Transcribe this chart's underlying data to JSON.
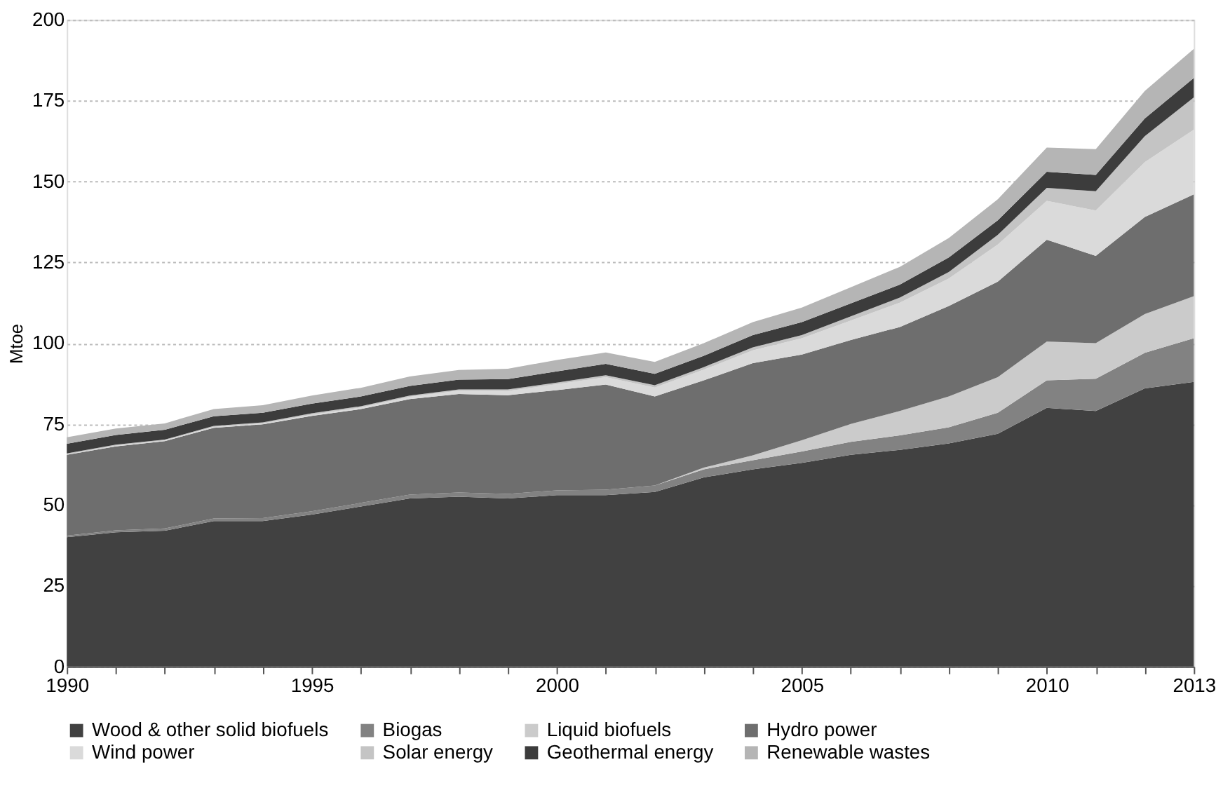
{
  "chart_data": {
    "type": "area",
    "stacked": true,
    "ylabel": "Mtoe",
    "x": [
      1990,
      1991,
      1992,
      1993,
      1994,
      1995,
      1996,
      1997,
      1998,
      1999,
      2000,
      2001,
      2002,
      2003,
      2004,
      2005,
      2006,
      2007,
      2008,
      2009,
      2010,
      2011,
      2012,
      2013
    ],
    "xlim": [
      1990,
      2013
    ],
    "xticks": [
      1990,
      {
        "value": 1991,
        "label": null
      },
      {
        "value": 1992,
        "label": null
      },
      {
        "value": 1993,
        "label": null
      },
      {
        "value": 1994,
        "label": null
      },
      1995,
      {
        "value": 1996,
        "label": null
      },
      {
        "value": 1997,
        "label": null
      },
      {
        "value": 1998,
        "label": null
      },
      {
        "value": 1999,
        "label": null
      },
      2000,
      {
        "value": 2001,
        "label": null
      },
      {
        "value": 2002,
        "label": null
      },
      {
        "value": 2003,
        "label": null
      },
      {
        "value": 2004,
        "label": null
      },
      2005,
      {
        "value": 2006,
        "label": null
      },
      {
        "value": 2007,
        "label": null
      },
      {
        "value": 2008,
        "label": null
      },
      {
        "value": 2009,
        "label": null
      },
      2010,
      {
        "value": 2011,
        "label": null
      },
      {
        "value": 2012,
        "label": null
      },
      2013
    ],
    "ylim": [
      0,
      200
    ],
    "yticks": [
      0,
      25,
      50,
      75,
      100,
      125,
      150,
      175,
      200
    ],
    "grid": "y",
    "legend": "bottom",
    "series": [
      {
        "name": "Wood & other solid biofuels",
        "color": "#414141",
        "values": [
          40,
          41.5,
          42,
          45,
          45,
          47,
          49.5,
          52,
          52.5,
          52,
          53,
          53,
          54,
          58.5,
          61,
          63,
          65.5,
          67,
          69,
          72,
          80,
          79,
          86,
          88
        ]
      },
      {
        "name": "Biogas",
        "color": "#828282",
        "values": [
          0.5,
          0.6,
          0.7,
          0.8,
          0.9,
          1,
          1.1,
          1.2,
          1.3,
          1.4,
          1.5,
          1.7,
          2,
          2.5,
          2.8,
          3.5,
          4,
          4.5,
          5,
          6.5,
          8.5,
          10,
          11,
          13.5
        ]
      },
      {
        "name": "Liquid biofuels",
        "color": "#cbcbcb",
        "values": [
          0,
          0,
          0,
          0,
          0,
          0,
          0,
          0,
          0,
          0,
          0,
          0,
          0,
          0.5,
          1.5,
          3.5,
          5.5,
          7.5,
          9.5,
          11,
          12,
          11,
          12,
          13
        ]
      },
      {
        "name": "Hydro power",
        "color": "#6e6e6e",
        "values": [
          25,
          26,
          27,
          28,
          29,
          29.5,
          29,
          29.5,
          30.5,
          30.5,
          31,
          32.5,
          27.5,
          27,
          28.5,
          26.5,
          26,
          26,
          28,
          29.5,
          31.5,
          27,
          30,
          31.5
        ]
      },
      {
        "name": "Wind power",
        "color": "#dadada",
        "values": [
          0.1,
          0.2,
          0.2,
          0.3,
          0.3,
          0.4,
          0.5,
          0.7,
          1,
          1.3,
          1.8,
          2.3,
          2.8,
          3.3,
          4,
          5,
          6,
          7.5,
          8.5,
          11.5,
          12,
          14,
          17,
          20
        ]
      },
      {
        "name": "Solar energy",
        "color": "#c4c4c4",
        "values": [
          0.3,
          0.3,
          0.3,
          0.3,
          0.3,
          0.4,
          0.4,
          0.4,
          0.4,
          0.5,
          0.5,
          0.6,
          0.7,
          0.8,
          0.9,
          1,
          1.3,
          1.6,
          2,
          3,
          4,
          6,
          8,
          10
        ]
      },
      {
        "name": "Geothermal energy",
        "color": "#3c3c3c",
        "values": [
          3,
          3,
          3,
          3,
          3,
          3,
          3,
          3,
          3,
          3.2,
          3.5,
          3.5,
          3.5,
          3.5,
          3.8,
          4,
          4,
          4,
          4.5,
          4.5,
          5,
          5,
          5.5,
          6
        ]
      },
      {
        "name": "Renewable wastes",
        "color": "#b5b5b5",
        "values": [
          2,
          2,
          2,
          2.2,
          2.3,
          2.5,
          2.7,
          2.9,
          3,
          3.2,
          3.5,
          3.5,
          3.7,
          3.9,
          4,
          4.5,
          5,
          5.5,
          6,
          6.5,
          7.5,
          8,
          8.5,
          9
        ]
      }
    ]
  }
}
